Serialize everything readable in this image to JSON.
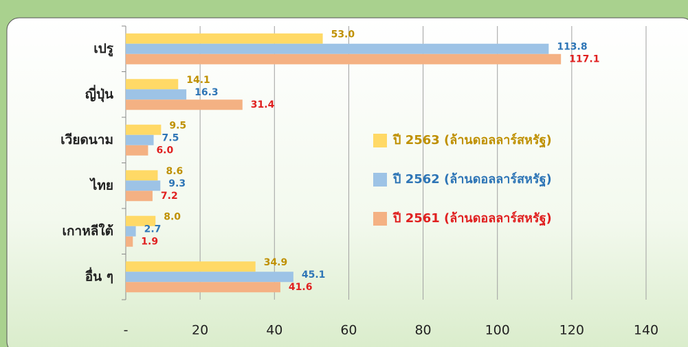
{
  "chart_data": {
    "type": "bar",
    "orientation": "horizontal",
    "categories": [
      "เปรู",
      "ญี่ปุ่น",
      "เวียดนาม",
      "ไทย",
      "เกาหลีใต้",
      "อื่น ๆ"
    ],
    "series": [
      {
        "name": "ปี 2563 (ล้านดอลลาร์สหรัฐ)",
        "color": "#ffd966",
        "label_color": "#bf9000",
        "values": [
          53.0,
          14.1,
          9.5,
          8.6,
          8.0,
          34.9
        ],
        "value_labels": [
          "53.0",
          "14.1",
          "9.5",
          "8.6",
          "8.0",
          "34.9"
        ]
      },
      {
        "name": "ปี 2562 (ล้านดอลลาร์สหรัฐ)",
        "color": "#9dc3e6",
        "label_color": "#2e75b6",
        "values": [
          113.8,
          16.3,
          7.5,
          9.3,
          2.7,
          45.1
        ],
        "value_labels": [
          "113.8",
          "16.3",
          "7.5",
          "9.3",
          "2.7",
          "45.1"
        ]
      },
      {
        "name": "ปี 2561 (ล้านดอลลาร์สหรัฐ)",
        "color": "#f4b183",
        "label_color": "#e02020",
        "values": [
          117.1,
          31.4,
          6.0,
          7.2,
          1.9,
          41.6
        ],
        "value_labels": [
          "117.1",
          "31.4",
          "6.0",
          "7.2",
          "1.9",
          "41.6"
        ]
      }
    ],
    "xlim": [
      0,
      140
    ],
    "xticks": [
      {
        "value": 0,
        "label": "-"
      },
      20,
      40,
      60,
      80,
      100,
      120,
      140
    ],
    "grid": true,
    "legend": "right"
  }
}
